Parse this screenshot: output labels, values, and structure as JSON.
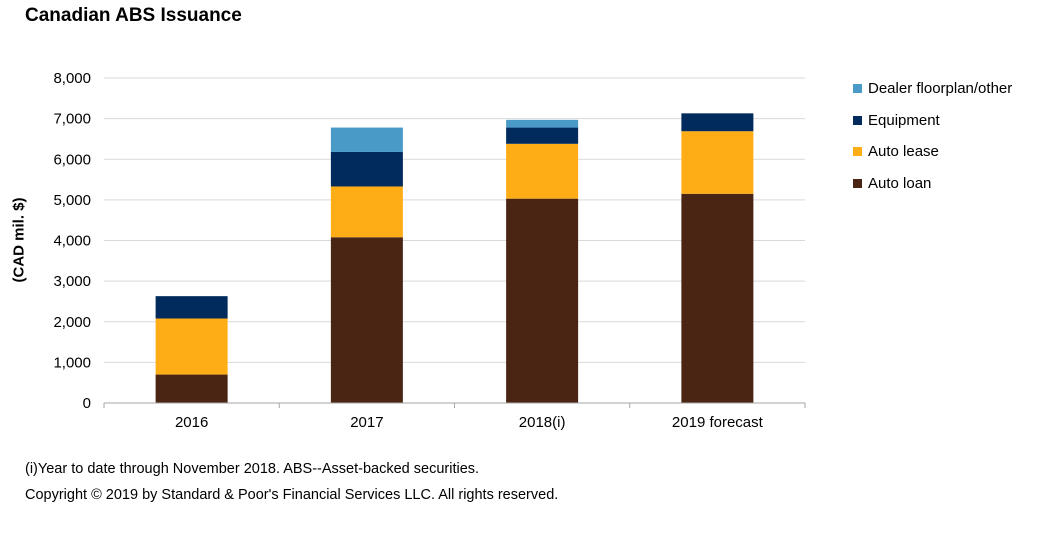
{
  "chart_data": {
    "type": "bar",
    "stacked": true,
    "title": "Canadian ABS Issuance",
    "xlabel": "",
    "ylabel": "(CAD mil. $)",
    "ylim": [
      0,
      8000
    ],
    "yticks": [
      0,
      1000,
      2000,
      3000,
      4000,
      5000,
      6000,
      7000,
      8000
    ],
    "ytick_labels": [
      "0",
      "1,000",
      "2,000",
      "3,000",
      "4,000",
      "5,000",
      "6,000",
      "7,000",
      "8,000"
    ],
    "grid": true,
    "legend_position": "right",
    "categories": [
      "2016",
      "2017",
      "2018(i)",
      "2019 forecast"
    ],
    "series": [
      {
        "name": "Auto loan",
        "color": "#4a2513",
        "values": [
          700,
          4080,
          5030,
          5150
        ]
      },
      {
        "name": "Auto lease",
        "color": "#ffad17",
        "values": [
          1380,
          1250,
          1350,
          1540
        ]
      },
      {
        "name": "Equipment",
        "color": "#002b5c",
        "values": [
          550,
          850,
          400,
          440
        ]
      },
      {
        "name": "Dealer floorplan/other",
        "color": "#4a9ac8",
        "values": [
          0,
          600,
          190,
          0
        ]
      }
    ]
  },
  "footnotes": {
    "line1": "(i)Year to date through November 2018. ABS--Asset-backed securities.",
    "line2": "Copyright © 2019 by Standard & Poor's Financial Services LLC. All rights reserved."
  }
}
